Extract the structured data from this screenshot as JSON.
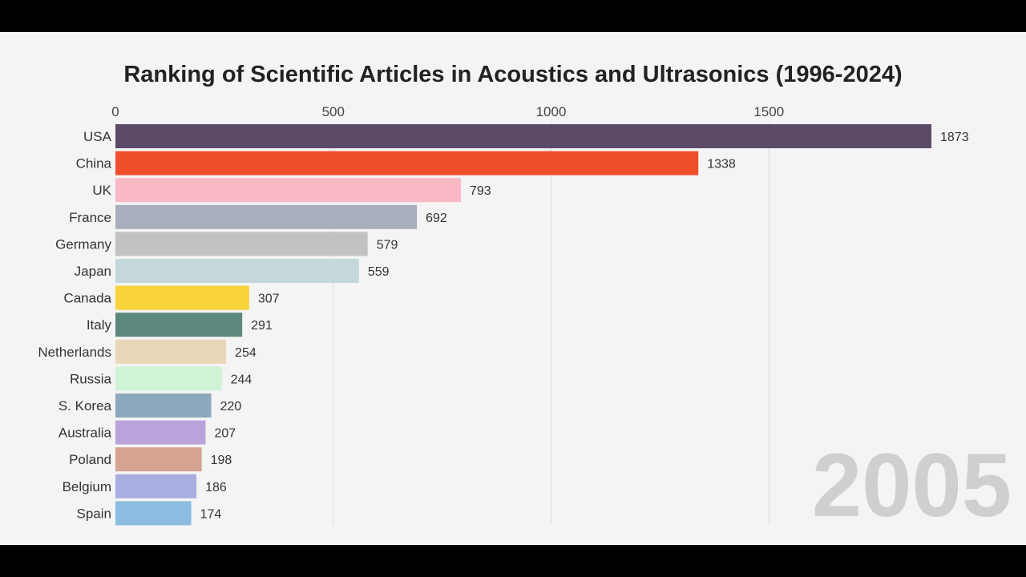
{
  "chart_data": {
    "type": "bar",
    "orientation": "horizontal",
    "title": "Ranking of Scientific Articles in Acoustics and Ultrasonics (1996-2024)",
    "xlabel": "",
    "ylabel": "",
    "xlim": [
      0,
      1873
    ],
    "x_ticks": [
      0,
      500,
      1000,
      1500
    ],
    "x_tick_labels": [
      "0",
      "500",
      "1000",
      "1500"
    ],
    "grid": true,
    "year_label": "2005",
    "categories": [
      "USA",
      "China",
      "UK",
      "France",
      "Germany",
      "Japan",
      "Canada",
      "Italy",
      "Netherlands",
      "Russia",
      "S. Korea",
      "Australia",
      "Poland",
      "Belgium",
      "Spain"
    ],
    "values": [
      1873,
      1338,
      793,
      692,
      579,
      559,
      307,
      291,
      254,
      244,
      220,
      207,
      198,
      186,
      174
    ],
    "colors": [
      "#5b4a68",
      "#f04e2b",
      "#f8b8c4",
      "#a8aebc",
      "#c2c2c2",
      "#c4d8dc",
      "#f8d33a",
      "#5b877c",
      "#ead7b8",
      "#cff3d4",
      "#8ca8bc",
      "#b9a3da",
      "#d4a490",
      "#a8aee0",
      "#8cbde0"
    ]
  }
}
